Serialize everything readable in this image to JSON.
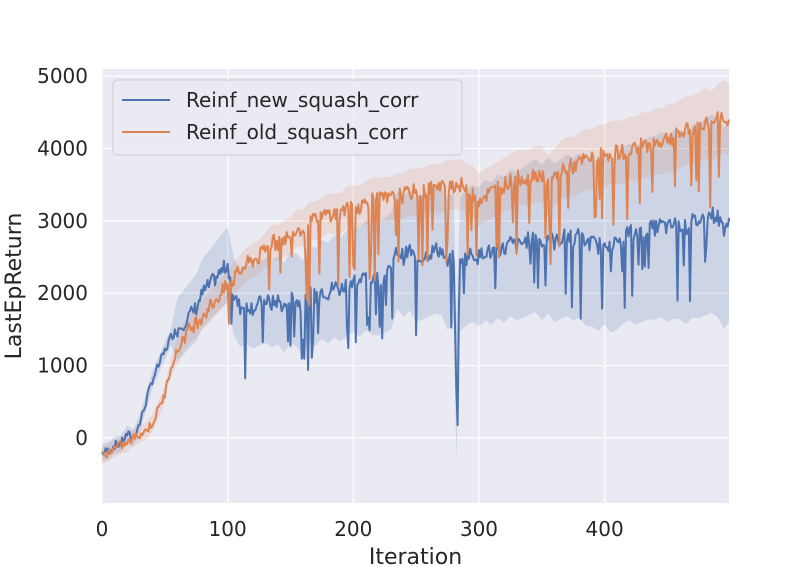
{
  "chart_data": {
    "type": "line",
    "title": "",
    "xlabel": "Iteration",
    "ylabel": "LastEpReturn",
    "xlim": [
      0,
      499
    ],
    "ylim": [
      -900,
      5100
    ],
    "x_ticks": [
      0,
      100,
      200,
      300,
      400
    ],
    "y_ticks": [
      0,
      1000,
      2000,
      3000,
      4000,
      5000
    ],
    "grid": true,
    "legend_position": "top-left",
    "series": [
      {
        "name": "Reinf_new_squash_corr",
        "color": "#4c72b0",
        "x": [
          0,
          5,
          10,
          15,
          20,
          25,
          30,
          35,
          40,
          45,
          50,
          55,
          60,
          65,
          70,
          75,
          80,
          85,
          90,
          95,
          100,
          105,
          110,
          115,
          120,
          125,
          130,
          135,
          140,
          145,
          150,
          155,
          160,
          165,
          170,
          175,
          180,
          185,
          190,
          195,
          200,
          205,
          210,
          215,
          220,
          225,
          230,
          235,
          240,
          245,
          250,
          255,
          260,
          265,
          270,
          275,
          280,
          282,
          285,
          290,
          295,
          300,
          305,
          310,
          315,
          320,
          325,
          330,
          335,
          340,
          345,
          350,
          355,
          360,
          365,
          370,
          375,
          380,
          385,
          390,
          395,
          400,
          405,
          410,
          415,
          420,
          425,
          430,
          435,
          440,
          445,
          450,
          455,
          460,
          465,
          470,
          475,
          480,
          485,
          490,
          495,
          499
        ],
        "y": [
          -200,
          -180,
          -100,
          -80,
          50,
          0,
          200,
          500,
          800,
          1000,
          1200,
          1400,
          1500,
          1600,
          1700,
          1800,
          2000,
          2100,
          2200,
          2300,
          2400,
          1950,
          1800,
          1850,
          1800,
          1850,
          1900,
          1850,
          1900,
          1800,
          1950,
          1900,
          1800,
          2000,
          1950,
          2050,
          2000,
          2100,
          2050,
          2150,
          2200,
          2150,
          2250,
          2200,
          2200,
          2250,
          2300,
          2600,
          2500,
          2600,
          2450,
          2500,
          2550,
          2600,
          2600,
          2400,
          2500,
          600,
          2400,
          2500,
          2550,
          2500,
          2600,
          2550,
          2650,
          2600,
          2700,
          2650,
          2700,
          2750,
          2800,
          2700,
          2800,
          2700,
          2750,
          2800,
          2750,
          2800,
          2700,
          2700,
          2650,
          2750,
          2650,
          2700,
          2800,
          2850,
          2800,
          2850,
          2900,
          2900,
          2950,
          2900,
          2950,
          2950,
          2900,
          3000,
          3000,
          3050,
          3100,
          3050,
          2900,
          3000
        ]
      },
      {
        "name": "Reinf_old_squash_corr",
        "color": "#dd8452",
        "x": [
          0,
          5,
          10,
          15,
          20,
          25,
          30,
          35,
          40,
          45,
          50,
          55,
          60,
          65,
          70,
          75,
          80,
          85,
          90,
          95,
          100,
          105,
          110,
          115,
          120,
          125,
          130,
          135,
          140,
          145,
          150,
          155,
          160,
          165,
          170,
          175,
          180,
          185,
          190,
          195,
          200,
          205,
          210,
          215,
          220,
          225,
          230,
          235,
          240,
          245,
          250,
          255,
          260,
          265,
          270,
          275,
          280,
          285,
          290,
          295,
          300,
          305,
          310,
          315,
          320,
          325,
          330,
          335,
          340,
          345,
          350,
          355,
          360,
          365,
          370,
          375,
          380,
          385,
          390,
          395,
          400,
          405,
          410,
          415,
          420,
          425,
          430,
          435,
          440,
          445,
          450,
          455,
          460,
          465,
          470,
          475,
          480,
          485,
          490,
          495,
          499
        ],
        "y": [
          -250,
          -200,
          -150,
          -100,
          -80,
          0,
          50,
          100,
          200,
          400,
          600,
          1000,
          1200,
          1400,
          1500,
          1600,
          1700,
          1800,
          1900,
          2000,
          2100,
          2200,
          2300,
          2400,
          2450,
          2500,
          2600,
          2700,
          2700,
          2750,
          2800,
          2900,
          2900,
          3000,
          3000,
          3050,
          3100,
          3100,
          3100,
          3200,
          3200,
          3200,
          3250,
          3300,
          3300,
          3300,
          3300,
          3350,
          3350,
          3400,
          3400,
          3400,
          3450,
          3450,
          3450,
          3500,
          3500,
          3500,
          3450,
          3400,
          3300,
          3350,
          3400,
          3450,
          3500,
          3550,
          3600,
          3600,
          3600,
          3650,
          3650,
          3500,
          3600,
          3700,
          3750,
          3750,
          3800,
          3850,
          3850,
          3900,
          3900,
          3950,
          3950,
          3950,
          4000,
          4000,
          4050,
          4050,
          4100,
          4100,
          4150,
          4150,
          4200,
          4250,
          4250,
          4300,
          4350,
          4300,
          4400,
          4450,
          4400
        ]
      }
    ]
  }
}
